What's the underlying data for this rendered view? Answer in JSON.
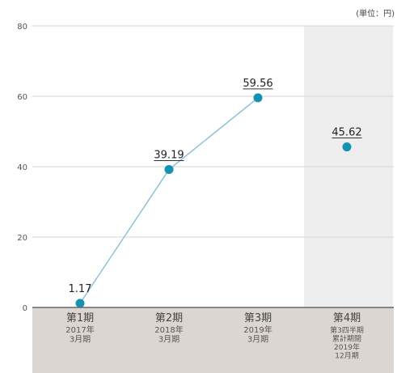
{
  "chart_data": {
    "type": "line",
    "unit_label": "(単位：円)",
    "ylim": [
      0,
      80
    ],
    "yticks": [
      0,
      20,
      40,
      60,
      80
    ],
    "grid": true,
    "categories": [
      {
        "label": "第1期",
        "sub": [
          "2017年",
          "3月期"
        ]
      },
      {
        "label": "第2期",
        "sub": [
          "2018年",
          "3月期"
        ]
      },
      {
        "label": "第3期",
        "sub": [
          "2019年",
          "3月期"
        ]
      },
      {
        "label": "第4期",
        "sub": [
          "第3四半期",
          "累計期間",
          "2019年",
          "12月期"
        ]
      }
    ],
    "values": [
      1.17,
      39.19,
      59.56,
      45.62
    ],
    "value_labels": [
      "1.17",
      "39.19",
      "59.56",
      "45.62"
    ],
    "connected_points": 3,
    "highlighted_category": 3,
    "colors": {
      "line": "#8cc3d6",
      "point": "#1592b2",
      "highlight_band": "#eeeeee",
      "category_band": "#dcd6d2",
      "axis": "#666666",
      "grid": "#d4d4d4"
    }
  }
}
